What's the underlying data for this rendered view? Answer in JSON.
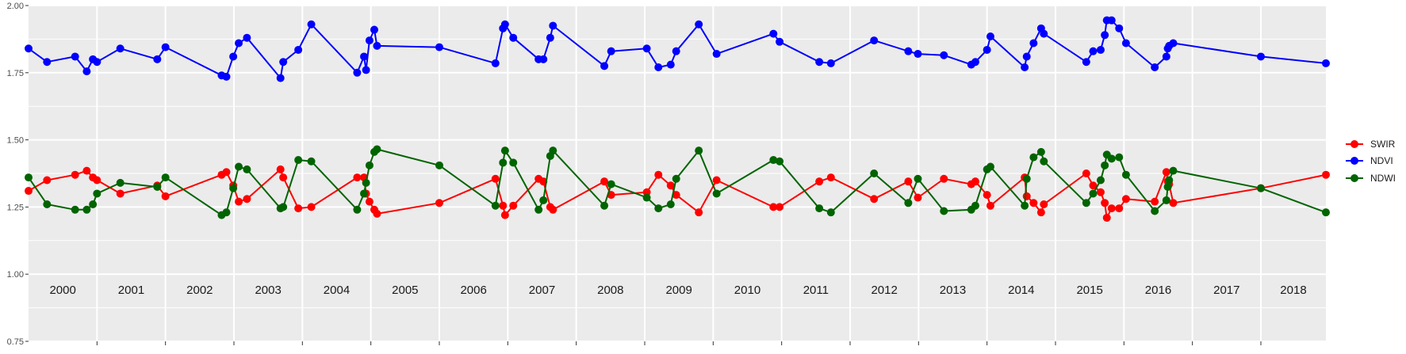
{
  "chart_data": {
    "type": "line",
    "title": "",
    "xlabel": "",
    "ylabel": "",
    "x_unit": "decimal year",
    "xlim": [
      2000.0,
      2018.95
    ],
    "ylim": [
      0.75,
      2.0
    ],
    "yticks": [
      0.75,
      1.0,
      1.25,
      1.5,
      1.75,
      2.0
    ],
    "ytick_labels": [
      "0.75",
      "1.00",
      "1.25",
      "1.50",
      "1.75",
      "2.00"
    ],
    "year_labels": [
      "2000",
      "2001",
      "2002",
      "2003",
      "2004",
      "2005",
      "2006",
      "2007",
      "2008",
      "2009",
      "2010",
      "2011",
      "2012",
      "2013",
      "2014",
      "2015",
      "2016",
      "2017",
      "2018"
    ],
    "grid": true,
    "legend_position": "right",
    "colors": {
      "panel": "#ebebeb",
      "grid": "#ffffff"
    },
    "series": [
      {
        "name": "SWIR",
        "color": "#ff0000",
        "x": [
          2000.0,
          2000.27,
          2000.68,
          2000.85,
          2000.94,
          2001.0,
          2001.34,
          2001.88,
          2002.0,
          2002.82,
          2002.89,
          2002.99,
          2003.07,
          2003.19,
          2003.68,
          2003.72,
          2003.94,
          2004.13,
          2004.8,
          2004.9,
          2004.93,
          2004.98,
          2005.05,
          2005.09,
          2006.0,
          2006.82,
          2006.93,
          2006.96,
          2007.08,
          2007.45,
          2007.52,
          2007.62,
          2007.66,
          2008.41,
          2008.51,
          2009.03,
          2009.2,
          2009.38,
          2009.46,
          2009.79,
          2010.05,
          2010.88,
          2010.97,
          2011.55,
          2011.72,
          2012.35,
          2012.85,
          2012.99,
          2013.37,
          2013.77,
          2013.83,
          2014.0,
          2014.05,
          2014.55,
          2014.58,
          2014.68,
          2014.79,
          2014.83,
          2015.45,
          2015.55,
          2015.66,
          2015.72,
          2015.75,
          2015.82,
          2015.93,
          2016.03,
          2016.45,
          2016.62,
          2016.64,
          2016.66,
          2016.72,
          2018.0,
          2018.95
        ],
        "y": [
          1.31,
          1.35,
          1.37,
          1.385,
          1.36,
          1.35,
          1.3,
          1.33,
          1.29,
          1.37,
          1.38,
          1.33,
          1.27,
          1.28,
          1.39,
          1.36,
          1.245,
          1.25,
          1.36,
          1.36,
          1.3,
          1.27,
          1.24,
          1.225,
          1.265,
          1.355,
          1.255,
          1.22,
          1.255,
          1.355,
          1.345,
          1.25,
          1.24,
          1.345,
          1.295,
          1.305,
          1.37,
          1.33,
          1.295,
          1.23,
          1.35,
          1.25,
          1.25,
          1.345,
          1.36,
          1.28,
          1.345,
          1.285,
          1.355,
          1.335,
          1.345,
          1.295,
          1.255,
          1.36,
          1.29,
          1.265,
          1.23,
          1.26,
          1.375,
          1.33,
          1.305,
          1.265,
          1.21,
          1.245,
          1.245,
          1.28,
          1.27,
          1.38,
          1.345,
          1.335,
          1.265,
          1.32,
          1.37
        ]
      },
      {
        "name": "NDVI",
        "color": "#0000ff",
        "x": [
          2000.0,
          2000.27,
          2000.68,
          2000.85,
          2000.94,
          2001.0,
          2001.34,
          2001.88,
          2002.0,
          2002.82,
          2002.89,
          2002.99,
          2003.07,
          2003.19,
          2003.68,
          2003.72,
          2003.94,
          2004.13,
          2004.8,
          2004.9,
          2004.93,
          2004.98,
          2005.05,
          2005.09,
          2006.0,
          2006.82,
          2006.93,
          2006.96,
          2007.08,
          2007.45,
          2007.52,
          2007.62,
          2007.66,
          2008.41,
          2008.51,
          2009.03,
          2009.2,
          2009.38,
          2009.46,
          2009.79,
          2010.05,
          2010.88,
          2010.97,
          2011.55,
          2011.72,
          2012.35,
          2012.85,
          2012.99,
          2013.37,
          2013.77,
          2013.83,
          2014.0,
          2014.05,
          2014.55,
          2014.58,
          2014.68,
          2014.79,
          2014.83,
          2015.45,
          2015.55,
          2015.66,
          2015.72,
          2015.75,
          2015.82,
          2015.93,
          2016.03,
          2016.45,
          2016.62,
          2016.64,
          2016.66,
          2016.72,
          2018.0,
          2018.95
        ],
        "y": [
          1.84,
          1.79,
          1.81,
          1.755,
          1.8,
          1.79,
          1.84,
          1.8,
          1.845,
          1.74,
          1.735,
          1.81,
          1.86,
          1.88,
          1.73,
          1.79,
          1.835,
          1.93,
          1.75,
          1.81,
          1.76,
          1.87,
          1.91,
          1.85,
          1.845,
          1.785,
          1.915,
          1.93,
          1.88,
          1.8,
          1.8,
          1.88,
          1.925,
          1.775,
          1.83,
          1.84,
          1.77,
          1.78,
          1.83,
          1.93,
          1.82,
          1.895,
          1.865,
          1.79,
          1.785,
          1.87,
          1.83,
          1.82,
          1.815,
          1.78,
          1.79,
          1.835,
          1.885,
          1.77,
          1.81,
          1.86,
          1.915,
          1.895,
          1.79,
          1.83,
          1.835,
          1.89,
          1.945,
          1.945,
          1.915,
          1.86,
          1.77,
          1.81,
          1.84,
          1.85,
          1.86,
          1.81,
          1.785
        ]
      },
      {
        "name": "NDWI",
        "color": "#006400",
        "x": [
          2000.0,
          2000.27,
          2000.68,
          2000.85,
          2000.94,
          2001.0,
          2001.34,
          2001.88,
          2002.0,
          2002.82,
          2002.89,
          2002.99,
          2003.07,
          2003.19,
          2003.68,
          2003.72,
          2003.94,
          2004.13,
          2004.8,
          2004.9,
          2004.93,
          2004.98,
          2005.05,
          2005.09,
          2006.0,
          2006.82,
          2006.93,
          2006.96,
          2007.08,
          2007.45,
          2007.52,
          2007.62,
          2007.66,
          2008.41,
          2008.51,
          2009.03,
          2009.2,
          2009.38,
          2009.46,
          2009.79,
          2010.05,
          2010.88,
          2010.97,
          2011.55,
          2011.72,
          2012.35,
          2012.85,
          2012.99,
          2013.37,
          2013.77,
          2013.83,
          2014.0,
          2014.05,
          2014.55,
          2014.58,
          2014.68,
          2014.79,
          2014.83,
          2015.45,
          2015.55,
          2015.66,
          2015.72,
          2015.75,
          2015.82,
          2015.93,
          2016.03,
          2016.45,
          2016.62,
          2016.64,
          2016.66,
          2016.72,
          2018.0,
          2018.95
        ],
        "y": [
          1.36,
          1.26,
          1.24,
          1.24,
          1.26,
          1.3,
          1.34,
          1.325,
          1.36,
          1.22,
          1.23,
          1.32,
          1.4,
          1.39,
          1.245,
          1.25,
          1.425,
          1.42,
          1.24,
          1.3,
          1.34,
          1.405,
          1.455,
          1.465,
          1.405,
          1.255,
          1.415,
          1.46,
          1.415,
          1.24,
          1.275,
          1.44,
          1.46,
          1.255,
          1.335,
          1.285,
          1.245,
          1.26,
          1.355,
          1.46,
          1.3,
          1.425,
          1.42,
          1.245,
          1.23,
          1.375,
          1.265,
          1.355,
          1.235,
          1.24,
          1.255,
          1.39,
          1.4,
          1.255,
          1.355,
          1.435,
          1.455,
          1.42,
          1.265,
          1.3,
          1.35,
          1.405,
          1.445,
          1.43,
          1.435,
          1.37,
          1.235,
          1.275,
          1.325,
          1.35,
          1.385,
          1.32,
          1.23
        ]
      }
    ]
  }
}
